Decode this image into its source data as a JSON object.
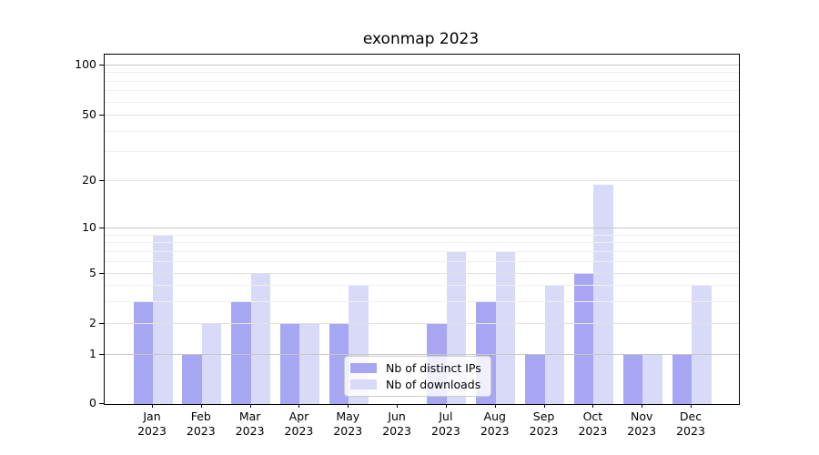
{
  "title": "exonmap 2023",
  "chart_data": {
    "type": "bar",
    "title": "exonmap 2023",
    "categories": [
      "Jan 2023",
      "Feb 2023",
      "Mar 2023",
      "Apr 2023",
      "May 2023",
      "Jun 2023",
      "Jul 2023",
      "Aug 2023",
      "Sep 2023",
      "Oct 2023",
      "Nov 2023",
      "Dec 2023"
    ],
    "x_tick_months": [
      "Jan",
      "Feb",
      "Mar",
      "Apr",
      "May",
      "Jun",
      "Jul",
      "Aug",
      "Sep",
      "Oct",
      "Nov",
      "Dec"
    ],
    "x_tick_year": "2023",
    "series": [
      {
        "name": "Nb of distinct IPs",
        "color": "#a6a6f3",
        "values": [
          3,
          1,
          3,
          2,
          2,
          0,
          2,
          3,
          1,
          5,
          1,
          1
        ]
      },
      {
        "name": "Nb of downloads",
        "color": "#d9d9f8",
        "values": [
          9,
          2,
          5,
          2,
          4,
          0,
          7,
          7,
          4,
          19,
          1,
          4
        ]
      }
    ],
    "y_ticks": [
      0,
      1,
      2,
      5,
      10,
      20,
      50,
      100
    ],
    "y_minor_ticks": [
      3,
      4,
      6,
      7,
      8,
      9,
      30,
      40,
      60,
      70,
      80,
      90
    ],
    "y_scale": "symlog",
    "ylim": [
      0,
      115
    ],
    "xlabel": "",
    "ylabel": "",
    "grid": "horizontal major+minor, drawn over bars",
    "legend_position": "lower center"
  },
  "legend": {
    "items": [
      {
        "label": "Nb of distinct IPs",
        "color": "#a6a6f3"
      },
      {
        "label": "Nb of downloads",
        "color": "#d9d9f8"
      }
    ]
  },
  "colors": {
    "decade_grid": "#c6c6c6",
    "mid_grid": "#e2e2e2",
    "minor_grid": "#efefef",
    "spine": "#000000",
    "text": "#000000"
  }
}
